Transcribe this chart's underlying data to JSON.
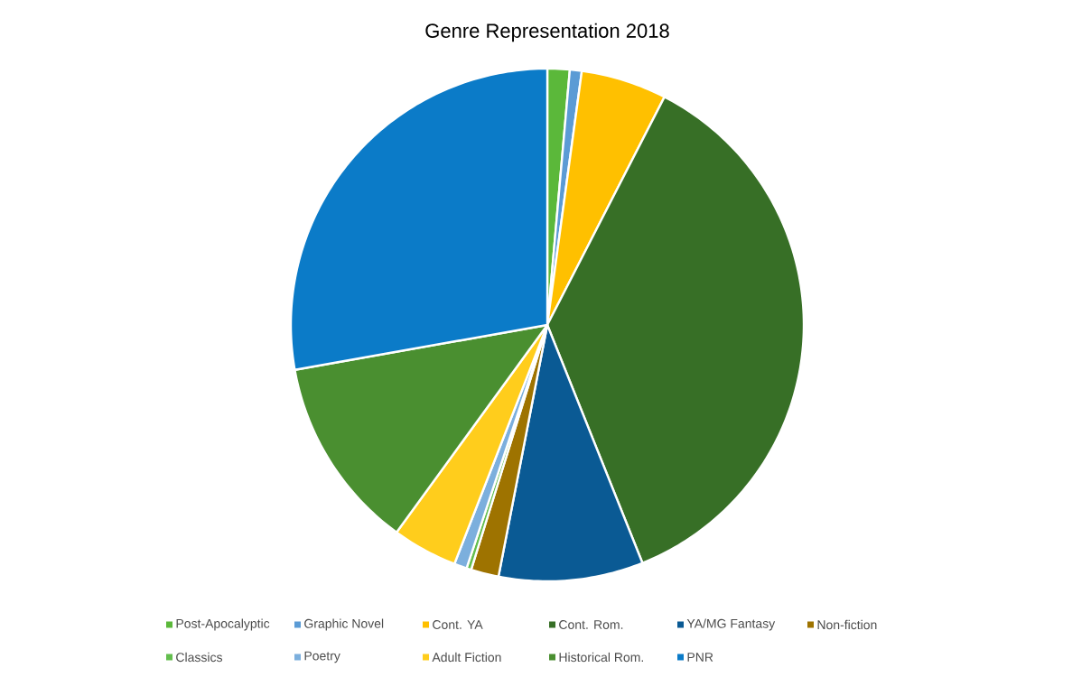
{
  "chart_data": {
    "type": "pie",
    "title": "Genre Representation 2018",
    "categories": [
      "Post-Apocalyptic",
      "Graphic Novel",
      "Cont. YA",
      "Cont. Rom.",
      "YA/MG Fantasy",
      "Non-fiction",
      "Classics",
      "Poetry",
      "Adult Fiction",
      "Historical Rom.",
      "PNR"
    ],
    "values": [
      1.4,
      0.75,
      5.4,
      36.4,
      9.1,
      1.75,
      0.3,
      0.8,
      4.1,
      12.2,
      27.8
    ],
    "colors": [
      "#5bb83a",
      "#5b9bd5",
      "#ffc000",
      "#376f26",
      "#0a5a94",
      "#9e7300",
      "#63be4e",
      "#7cafdd",
      "#ffcd1c",
      "#4a8f30",
      "#0b7bc8"
    ],
    "legend": "bottom"
  }
}
